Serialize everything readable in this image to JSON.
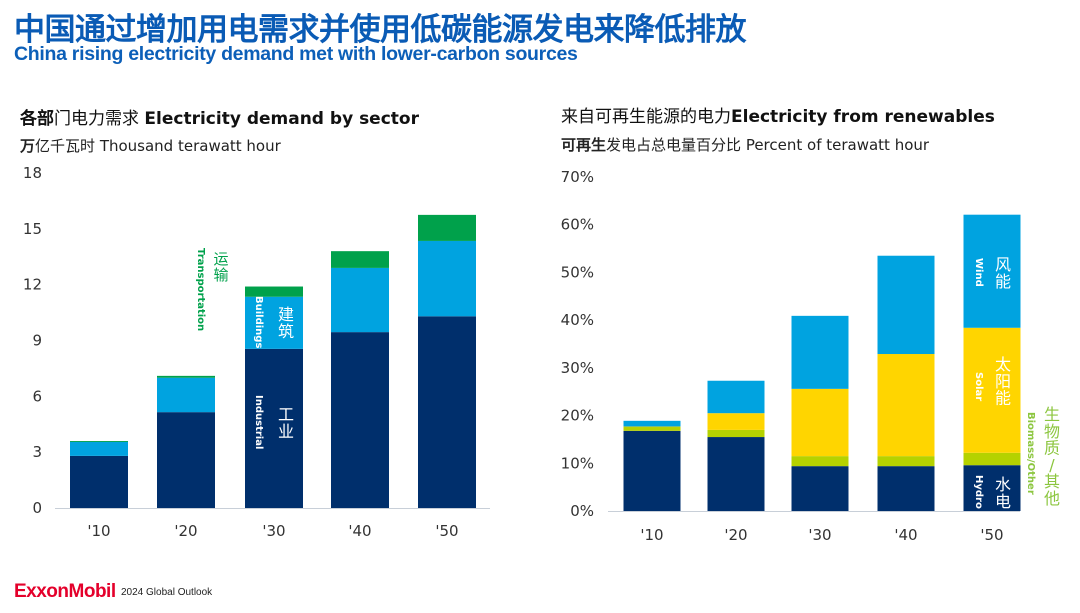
{
  "header": {
    "title_cn": "中国通过增加用电需求并使用低碳能源发电来降低排放",
    "title_en": "China rising electricity demand met with lower-carbon sources"
  },
  "left_panel": {
    "title_cn_bold": "各部",
    "title_cn": "门电力需求",
    "title_en": "Electricity demand by sector",
    "sub_cn_bold": "万",
    "sub_cn": "亿千瓦时",
    "sub_en": "Thousand terawatt hour"
  },
  "right_panel": {
    "title_cn": "来自可再生能源的电力",
    "title_en": "Electricity from renewables",
    "sub_cn_bold": "可再生",
    "sub_cn": "发电占总电量百分比",
    "sub_en": "Percent of terawatt hour"
  },
  "footer": {
    "logo": "ExxonMobil",
    "text": "2024 Global Outlook"
  },
  "chart_data": [
    {
      "type": "bar",
      "stacked": true,
      "title": "各部门电力需求 Electricity demand by sector",
      "ylabel": "万亿千瓦时 Thousand terawatt hour",
      "xlabel": "",
      "categories": [
        "'10",
        "'20",
        "'30",
        "'40",
        "'50"
      ],
      "ylim": [
        0,
        18
      ],
      "yticks": [
        0,
        3,
        6,
        9,
        12,
        15,
        18
      ],
      "ytick_labels": [
        "0",
        "3",
        "6",
        "9",
        "12",
        "15",
        "18"
      ],
      "grid": false,
      "series": [
        {
          "name": "Industrial",
          "label_cn": "工业",
          "label_en": "Industrial",
          "color": "#002f6c",
          "values": [
            2.8,
            5.15,
            8.55,
            9.45,
            10.3
          ]
        },
        {
          "name": "Buildings",
          "label_cn": "建筑",
          "label_en": "Buildings",
          "color": "#00a3e0",
          "values": [
            0.75,
            1.85,
            2.8,
            3.45,
            4.05
          ]
        },
        {
          "name": "Transportation",
          "label_cn": "运输",
          "label_en": "Transportation",
          "color": "#00a14b",
          "values": [
            0.05,
            0.1,
            0.55,
            0.9,
            1.4
          ]
        }
      ]
    },
    {
      "type": "bar",
      "stacked": true,
      "title": "来自可再生能源的电力 Electricity from renewables",
      "ylabel": "可再生发电占总电量百分比 Percent of terawatt hour",
      "xlabel": "",
      "categories": [
        "'10",
        "'20",
        "'30",
        "'40",
        "'50"
      ],
      "ylim": [
        0,
        70
      ],
      "yticks": [
        0,
        10,
        20,
        30,
        40,
        50,
        60,
        70
      ],
      "ytick_labels": [
        "0%",
        "10%",
        "20%",
        "30%",
        "40%",
        "50%",
        "60%",
        "70%"
      ],
      "grid": false,
      "series": [
        {
          "name": "Hydro",
          "label_cn": "水电",
          "label_en": "Hydro",
          "color": "#002f6c",
          "values": [
            16.8,
            15.5,
            9.4,
            9.4,
            9.6
          ]
        },
        {
          "name": "Biomass/Other",
          "label_cn": "生物质/其他",
          "label_en": "Biomass/Other",
          "color": "#b5d200",
          "values": [
            0.8,
            1.5,
            2.1,
            2.1,
            2.6
          ]
        },
        {
          "name": "Solar",
          "label_cn": "太阳能",
          "label_en": "Solar",
          "color": "#ffd500",
          "values": [
            0.1,
            3.5,
            14.1,
            21.4,
            26.2
          ]
        },
        {
          "name": "Wind",
          "label_cn": "风能",
          "label_en": "Wind",
          "color": "#00a3e0",
          "values": [
            1.2,
            6.8,
            15.3,
            20.6,
            23.7
          ]
        }
      ]
    }
  ]
}
